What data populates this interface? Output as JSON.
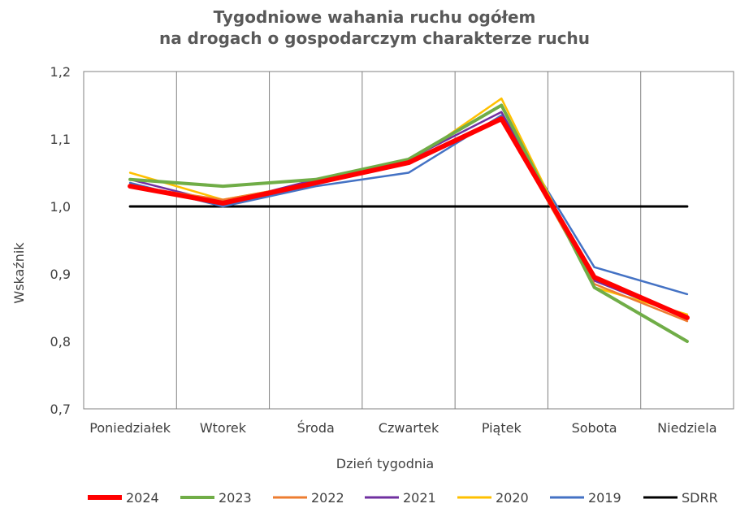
{
  "chart_data": {
    "type": "line",
    "title_lines": [
      "Tygodniowe wahania ruchu ogółem",
      "na drogach o gospodarczym charakterze ruchu"
    ],
    "xlabel": "Dzień tygodnia",
    "ylabel": "Wskaźnik",
    "categories": [
      "Poniedziałek",
      "Wtorek",
      "Środa",
      "Czwartek",
      "Piątek",
      "Sobota",
      "Niedziela"
    ],
    "ylim": [
      0.7,
      1.2
    ],
    "yticks": [
      "0,7",
      "0,8",
      "0,9",
      "1,0",
      "1,1",
      "1,2"
    ],
    "ytick_values": [
      0.7,
      0.8,
      0.9,
      1.0,
      1.1,
      1.2
    ],
    "grid": "vertical",
    "legend_position": "bottom",
    "series": [
      {
        "name": "SDRR",
        "color": "#000000",
        "values": [
          1.0,
          1.0,
          1.0,
          1.0,
          1.0,
          1.0,
          1.0
        ]
      },
      {
        "name": "2019",
        "color": "#4472C4",
        "values": [
          1.035,
          1.0,
          1.03,
          1.05,
          1.135,
          0.91,
          0.87
        ]
      },
      {
        "name": "2020",
        "color": "#FFC000",
        "values": [
          1.05,
          1.01,
          1.035,
          1.065,
          1.16,
          0.88,
          0.84
        ]
      },
      {
        "name": "2021",
        "color": "#7030A0",
        "values": [
          1.04,
          1.005,
          1.04,
          1.07,
          1.14,
          0.89,
          0.835
        ]
      },
      {
        "name": "2022",
        "color": "#ED7D31",
        "values": [
          1.03,
          1.01,
          1.035,
          1.065,
          1.13,
          0.885,
          0.83
        ]
      },
      {
        "name": "2023",
        "color": "#70AD47",
        "values": [
          1.04,
          1.03,
          1.04,
          1.07,
          1.15,
          0.88,
          0.8
        ]
      },
      {
        "name": "2024",
        "color": "#FF0000",
        "values": [
          1.03,
          1.005,
          1.035,
          1.065,
          1.13,
          0.895,
          0.835
        ]
      }
    ],
    "legend_order": [
      "2024",
      "2023",
      "2022",
      "2021",
      "2020",
      "2019",
      "SDRR"
    ]
  }
}
